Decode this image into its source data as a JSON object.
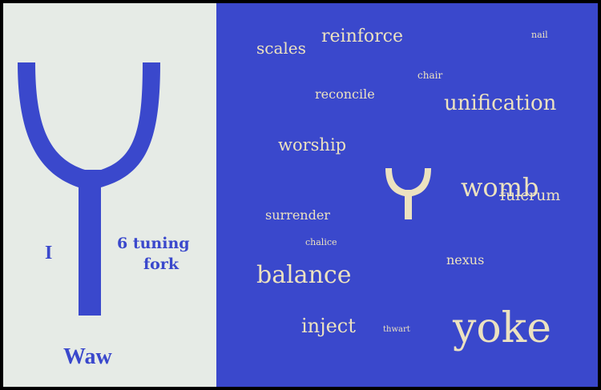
{
  "letter": {
    "number": "I",
    "meaning_line1": "6 tuning",
    "meaning_line2": "fork",
    "name": "Waw",
    "glyph_icon": "tuning-fork-glyph-icon"
  },
  "colors": {
    "blue": "#3a48cc",
    "cream": "#ece2c0",
    "background_light": "#e6ebe6"
  },
  "words": {
    "scales": "scales",
    "reinforce": "reinforce",
    "nail": "nail",
    "chair": "chair",
    "reconcile": "reconcile",
    "unification": "unification",
    "worship": "worship",
    "womb": "womb",
    "fulcrum": "fulcrum",
    "surrender": "surrender",
    "chalice": "chalice",
    "nexus": "nexus",
    "balance": "balance",
    "inject": "inject",
    "thwart": "thwart",
    "yoke": "yoke"
  }
}
